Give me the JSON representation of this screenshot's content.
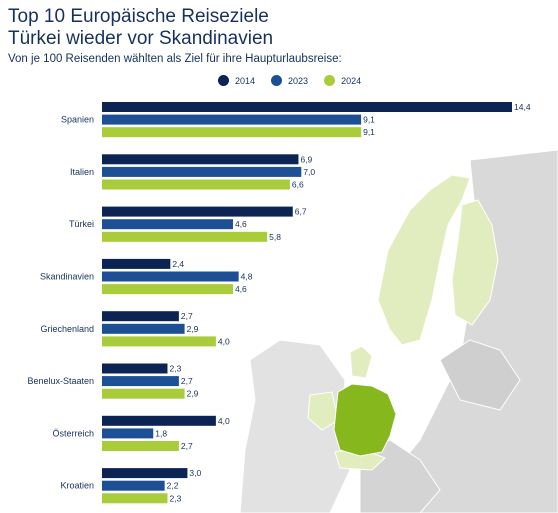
{
  "header": {
    "title_line1": "Top 10 Europäische Reiseziele",
    "title_line2": "Türkei wieder vor Skandinavien",
    "subtitle": "Von je 100 Reisenden wählten als Ziel für ihre Haupturlaubsreise:"
  },
  "colors": {
    "s2014": "#0b2454",
    "s2023": "#1d4f94",
    "s2024": "#a8cc3a",
    "map_land": "#d9d9d9",
    "map_highlight_light": "#e2edbf",
    "map_germany": "#86b81e"
  },
  "chart_data": {
    "type": "bar",
    "orientation": "horizontal",
    "title": "Top 10 Europäische Reiseziele",
    "subtitle": "Türkei wieder vor Skandinavien",
    "categories": [
      "Spanien",
      "Italien",
      "Türkei",
      "Skandinavien",
      "Griechenland",
      "Benelux-Staaten",
      "Österreich",
      "Kroatien"
    ],
    "series": [
      {
        "name": "2014",
        "values": [
          14.4,
          6.9,
          6.7,
          2.4,
          2.7,
          2.3,
          4.0,
          3.0
        ]
      },
      {
        "name": "2023",
        "values": [
          9.1,
          7.0,
          4.6,
          4.8,
          2.9,
          2.7,
          1.8,
          2.2
        ]
      },
      {
        "name": "2024",
        "values": [
          9.1,
          6.6,
          5.8,
          4.6,
          4.0,
          2.9,
          2.7,
          2.3
        ]
      }
    ],
    "value_labels": [
      [
        "14,4",
        "6,9",
        "6,7",
        "2,4",
        "2,7",
        "2,3",
        "4,0",
        "3,0"
      ],
      [
        "9,1",
        "7,0",
        "4,6",
        "4,8",
        "2,9",
        "2,7",
        "1,8",
        "2,2"
      ],
      [
        "9,1",
        "6,6",
        "5,8",
        "4,6",
        "4,0",
        "2,9",
        "2,7",
        "2,3"
      ]
    ],
    "xlim": [
      0,
      14.4
    ],
    "legend_position": "top",
    "grid": false,
    "xlabel": "",
    "ylabel": ""
  }
}
